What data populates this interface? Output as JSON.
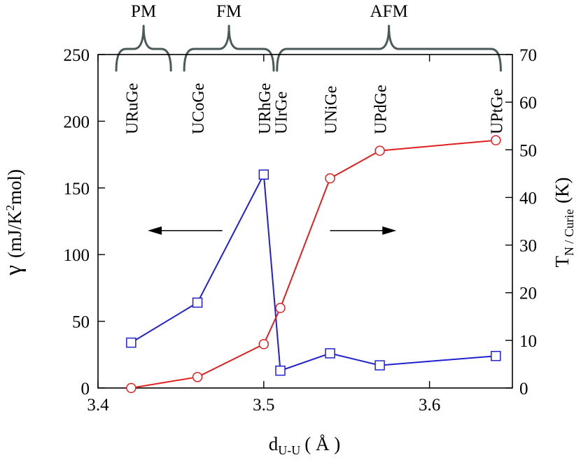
{
  "chart_data": {
    "type": "line",
    "x_axis": {
      "label_base": "d",
      "label_sub": "U-U",
      "label_unit": "( Å )",
      "range": [
        3.4,
        3.65
      ],
      "ticks": [
        3.4,
        3.5,
        3.6
      ],
      "tick_labels": [
        "3.4",
        "3.5",
        "3.6"
      ]
    },
    "y_left": {
      "label_symbol": "γ",
      "label_unit_a": "(mJ/K",
      "label_unit_sup": "2",
      "label_unit_b": "mol)",
      "range": [
        0,
        250
      ],
      "ticks": [
        0,
        50,
        100,
        150,
        200,
        250
      ],
      "tick_labels": [
        "0",
        "50",
        "100",
        "150",
        "200",
        "250"
      ]
    },
    "y_right": {
      "label_base": "T",
      "label_sub": "N / Curie",
      "label_unit": "(K)",
      "range": [
        0,
        70
      ],
      "ticks": [
        0,
        10,
        20,
        30,
        40,
        50,
        60,
        70
      ],
      "tick_labels": [
        "0",
        "10",
        "20",
        "30",
        "40",
        "50",
        "60",
        "70"
      ]
    },
    "series": [
      {
        "name": "gamma",
        "axis": "left",
        "color": "#2020d0",
        "marker": "square",
        "x": [
          3.42,
          3.46,
          3.5,
          3.51,
          3.54,
          3.57,
          3.64
        ],
        "values": [
          34,
          64,
          160,
          13,
          26,
          17,
          24
        ]
      },
      {
        "name": "T_N_Curie",
        "axis": "right",
        "color": "#e02020",
        "marker": "circle",
        "x": [
          3.42,
          3.46,
          3.5,
          3.51,
          3.54,
          3.57,
          3.64
        ],
        "values": [
          0,
          2.3,
          9.2,
          16.8,
          44,
          49.8,
          52
        ]
      }
    ],
    "compounds": [
      {
        "label": "URuGe",
        "x": 3.42
      },
      {
        "label": "UCoGe",
        "x": 3.46
      },
      {
        "label": "URhGe",
        "x": 3.5
      },
      {
        "label": "UIrGe",
        "x": 3.51
      },
      {
        "label": "UNiGe",
        "x": 3.54
      },
      {
        "label": "UPdGe",
        "x": 3.57
      },
      {
        "label": "UPtGe",
        "x": 3.64
      }
    ],
    "phases": [
      {
        "label": "PM",
        "x_start": 3.411,
        "x_end": 3.444
      },
      {
        "label": "FM",
        "x_start": 3.452,
        "x_end": 3.506
      },
      {
        "label": "AFM",
        "x_start": 3.508,
        "x_end": 3.643
      }
    ],
    "brace_color": "#4a5a58",
    "arrows": [
      {
        "name": "left-axis-arrow",
        "direction": "left",
        "x_from": 3.475,
        "x_to": 3.43,
        "y": 118
      },
      {
        "name": "right-axis-arrow",
        "direction": "right",
        "x_from": 3.54,
        "x_to": 3.58,
        "y": 118
      }
    ]
  }
}
